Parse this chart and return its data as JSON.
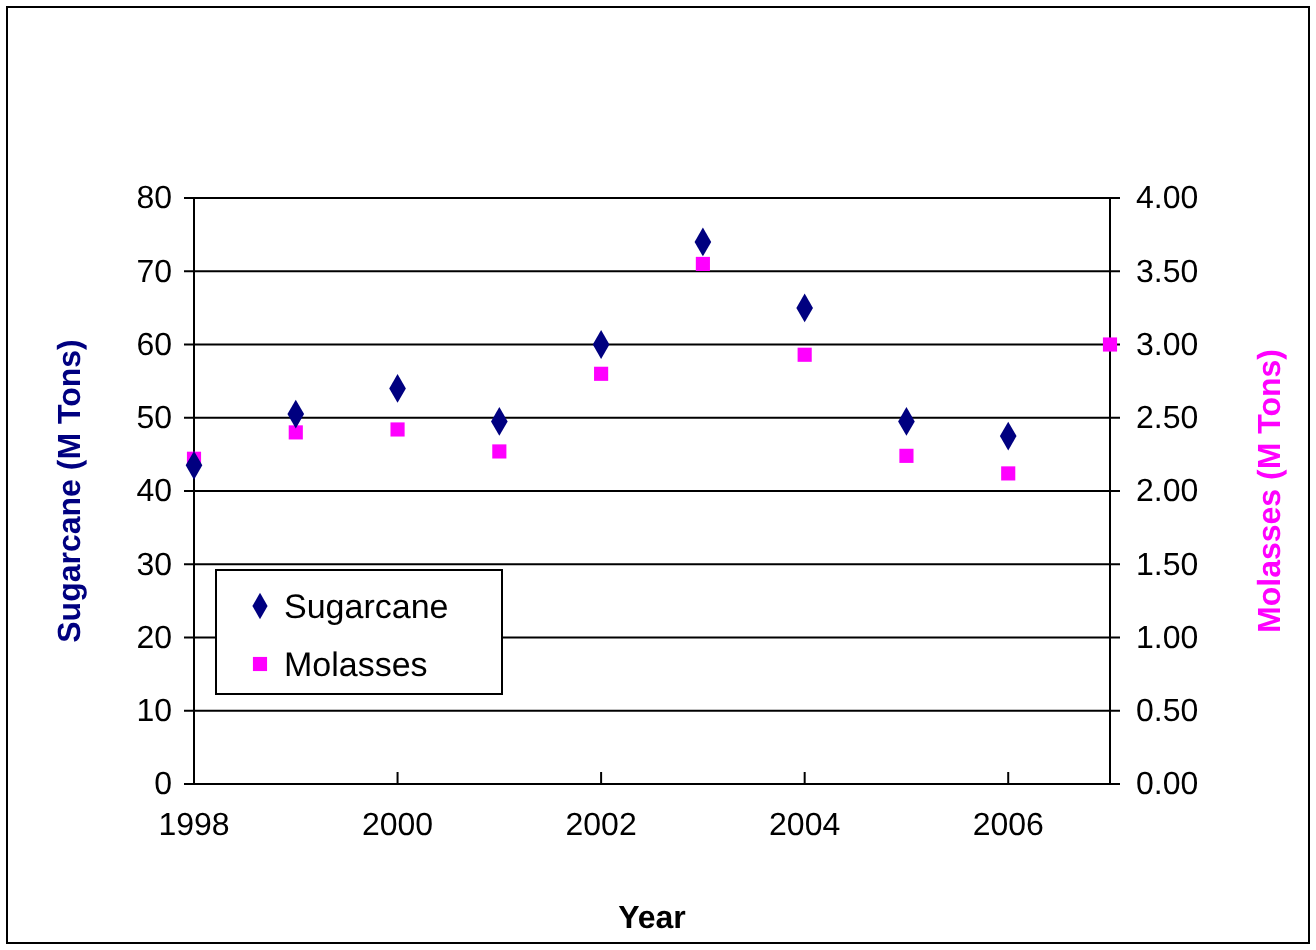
{
  "chart_data": {
    "type": "scatter",
    "xlabel": "Year",
    "ylabel": "Sugarcane (M Tons)",
    "y2label": "Molasses (M Tons)",
    "x": [
      1998,
      1999,
      2000,
      2001,
      2002,
      2003,
      2004,
      2005,
      2006,
      2007
    ],
    "series": [
      {
        "name": "Sugarcane",
        "color": "#000080",
        "marker": "diamond",
        "values": [
          43.5,
          50.5,
          54,
          49.5,
          60,
          74,
          65,
          49.5,
          47.5,
          null
        ]
      },
      {
        "name": "Molasses",
        "color": "#ff00ff",
        "marker": "square",
        "axis": "y2",
        "values": [
          2.22,
          2.4,
          2.42,
          2.27,
          2.8,
          3.55,
          2.93,
          2.24,
          2.12,
          3.0
        ]
      }
    ],
    "xlim": [
      1998,
      2007
    ],
    "xticks": [
      1998,
      2000,
      2002,
      2004,
      2006
    ],
    "ylim": [
      0,
      80
    ],
    "yticks": [
      0,
      10,
      20,
      30,
      40,
      50,
      60,
      70,
      80
    ],
    "y2lim": [
      0,
      4
    ],
    "y2ticks": [
      {
        "value": 0,
        "label": "0.00"
      },
      {
        "value": 0.5,
        "label": "0.50"
      },
      {
        "value": 1,
        "label": "1.00"
      },
      {
        "value": 1.5,
        "label": "1.50"
      },
      {
        "value": 2,
        "label": "2.00"
      },
      {
        "value": 2.5,
        "label": "2.50"
      },
      {
        "value": 3,
        "label": "3.00"
      },
      {
        "value": 3.5,
        "label": "3.50"
      },
      {
        "value": 4,
        "label": "4.00"
      }
    ],
    "grid": "y",
    "legend": "bottom left"
  }
}
